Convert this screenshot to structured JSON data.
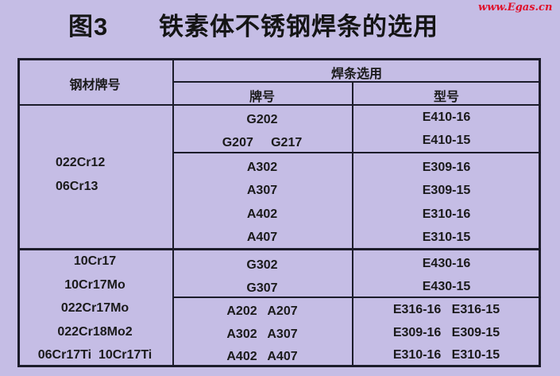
{
  "title": {
    "figure": "图3",
    "text": "铁素体不锈钢焊条的选用"
  },
  "watermark": "www.Egas.cn",
  "table": {
    "headers": {
      "steel_grade": "钢材牌号",
      "electrode_selection": "焊条选用",
      "brand": "牌号",
      "type": "型号"
    },
    "groups": [
      {
        "steel_grades": [
          "022Cr12",
          "06Cr13"
        ],
        "rows": [
          {
            "brands": [
              "G202",
              "G207     G217"
            ],
            "types": [
              "E410-16",
              "E410-15"
            ]
          },
          {
            "brands": [
              "A302",
              "A307",
              "A402",
              "A407"
            ],
            "types": [
              "E309-16",
              "E309-15",
              "E310-16",
              "E310-15"
            ]
          }
        ]
      },
      {
        "steel_grades": [
          "10Cr17",
          "10Cr17Mo",
          "022Cr17Mo",
          "022Cr18Mo2",
          "06Cr17Ti  10Cr17Ti"
        ],
        "rows": [
          {
            "brands": [
              "G302",
              "G307"
            ],
            "types": [
              "E430-16",
              "E430-15"
            ]
          },
          {
            "brands": [
              "A202   A207",
              "A302   A307",
              "A402   A407"
            ],
            "types": [
              "E316-16   E316-15",
              "E309-16   E309-15",
              "E310-16   E310-15"
            ]
          }
        ]
      }
    ]
  }
}
